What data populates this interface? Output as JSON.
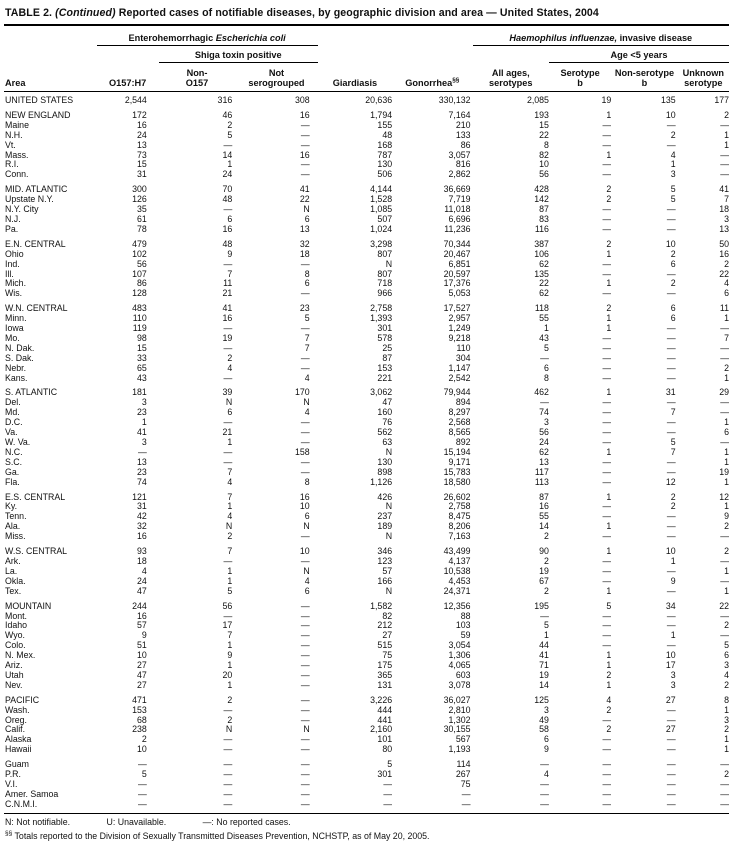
{
  "title": {
    "table_label": "TABLE 2.",
    "continued": "(Continued)",
    "text": "Reported cases of notifiable diseases, by geographic division and area — United States, 2004"
  },
  "header": {
    "area": "Area",
    "group_ecoli": {
      "prefix": "Enterohemorrhagic ",
      "italic": "Escherichia coli"
    },
    "group_shiga": "Shiga toxin positive",
    "group_hflu": {
      "italic": "Haemophilus influenzae,",
      "suffix": " invasive disease"
    },
    "group_age": "Age <5 years",
    "cols": {
      "o157": "O157:H7",
      "non_o157": "Non-\nO157",
      "not_serogrouped": "Not\nserogrouped",
      "giardiasis": "Giardiasis",
      "gonorrhea": "Gonorrhea",
      "gonorrhea_sup": "§§",
      "all_ages": "All ages,\nserotypes",
      "serotype_b": "Serotype\nb",
      "non_serotype_b": "Non-serotype\nb",
      "unknown_serotype": "Unknown\nserotype"
    }
  },
  "table": {
    "rows": [
      {
        "area": "UNITED STATES",
        "kind": "us",
        "gap": false,
        "values": [
          "2,544",
          "316",
          "308",
          "20,636",
          "330,132",
          "2,085",
          "19",
          "135",
          "177"
        ]
      },
      {
        "area": "NEW ENGLAND",
        "kind": "region",
        "gap": true,
        "values": [
          "172",
          "46",
          "16",
          "1,794",
          "7,164",
          "193",
          "1",
          "10",
          "2"
        ]
      },
      {
        "area": "Maine",
        "kind": "state",
        "gap": false,
        "values": [
          "16",
          "2",
          "—",
          "155",
          "210",
          "15",
          "—",
          "—",
          "—"
        ]
      },
      {
        "area": "N.H.",
        "kind": "state",
        "gap": false,
        "values": [
          "24",
          "5",
          "—",
          "48",
          "133",
          "22",
          "—",
          "2",
          "1"
        ]
      },
      {
        "area": "Vt.",
        "kind": "state",
        "gap": false,
        "values": [
          "13",
          "—",
          "—",
          "168",
          "86",
          "8",
          "—",
          "—",
          "1"
        ]
      },
      {
        "area": "Mass.",
        "kind": "state",
        "gap": false,
        "values": [
          "73",
          "14",
          "16",
          "787",
          "3,057",
          "82",
          "1",
          "4",
          "—"
        ]
      },
      {
        "area": "R.I.",
        "kind": "state",
        "gap": false,
        "values": [
          "15",
          "1",
          "—",
          "130",
          "816",
          "10",
          "—",
          "1",
          "—"
        ]
      },
      {
        "area": "Conn.",
        "kind": "state",
        "gap": false,
        "values": [
          "31",
          "24",
          "—",
          "506",
          "2,862",
          "56",
          "—",
          "3",
          "—"
        ]
      },
      {
        "area": "MID. ATLANTIC",
        "kind": "region",
        "gap": true,
        "values": [
          "300",
          "70",
          "41",
          "4,144",
          "36,669",
          "428",
          "2",
          "5",
          "41"
        ]
      },
      {
        "area": "Upstate N.Y.",
        "kind": "state",
        "gap": false,
        "values": [
          "126",
          "48",
          "22",
          "1,528",
          "7,719",
          "142",
          "2",
          "5",
          "7"
        ]
      },
      {
        "area": "N.Y. City",
        "kind": "state",
        "gap": false,
        "values": [
          "35",
          "—",
          "N",
          "1,085",
          "11,018",
          "87",
          "—",
          "—",
          "18"
        ]
      },
      {
        "area": "N.J.",
        "kind": "state",
        "gap": false,
        "values": [
          "61",
          "6",
          "6",
          "507",
          "6,696",
          "83",
          "—",
          "—",
          "3"
        ]
      },
      {
        "area": "Pa.",
        "kind": "state",
        "gap": false,
        "values": [
          "78",
          "16",
          "13",
          "1,024",
          "11,236",
          "116",
          "—",
          "—",
          "13"
        ]
      },
      {
        "area": "E.N. CENTRAL",
        "kind": "region",
        "gap": true,
        "values": [
          "479",
          "48",
          "32",
          "3,298",
          "70,344",
          "387",
          "2",
          "10",
          "50"
        ]
      },
      {
        "area": "Ohio",
        "kind": "state",
        "gap": false,
        "values": [
          "102",
          "9",
          "18",
          "807",
          "20,467",
          "106",
          "1",
          "2",
          "16"
        ]
      },
      {
        "area": "Ind.",
        "kind": "state",
        "gap": false,
        "values": [
          "56",
          "—",
          "—",
          "N",
          "6,851",
          "62",
          "—",
          "6",
          "2"
        ]
      },
      {
        "area": "Ill.",
        "kind": "state",
        "gap": false,
        "values": [
          "107",
          "7",
          "8",
          "807",
          "20,597",
          "135",
          "—",
          "—",
          "22"
        ]
      },
      {
        "area": "Mich.",
        "kind": "state",
        "gap": false,
        "values": [
          "86",
          "11",
          "6",
          "718",
          "17,376",
          "22",
          "1",
          "2",
          "4"
        ]
      },
      {
        "area": "Wis.",
        "kind": "state",
        "gap": false,
        "values": [
          "128",
          "21",
          "—",
          "966",
          "5,053",
          "62",
          "—",
          "—",
          "6"
        ]
      },
      {
        "area": "W.N. CENTRAL",
        "kind": "region",
        "gap": true,
        "values": [
          "483",
          "41",
          "23",
          "2,758",
          "17,527",
          "118",
          "2",
          "6",
          "11"
        ]
      },
      {
        "area": "Minn.",
        "kind": "state",
        "gap": false,
        "values": [
          "110",
          "16",
          "5",
          "1,393",
          "2,957",
          "55",
          "1",
          "6",
          "1"
        ]
      },
      {
        "area": "Iowa",
        "kind": "state",
        "gap": false,
        "values": [
          "119",
          "—",
          "—",
          "301",
          "1,249",
          "1",
          "1",
          "—",
          "—"
        ]
      },
      {
        "area": "Mo.",
        "kind": "state",
        "gap": false,
        "values": [
          "98",
          "19",
          "7",
          "578",
          "9,218",
          "43",
          "—",
          "—",
          "7"
        ]
      },
      {
        "area": "N. Dak.",
        "kind": "state",
        "gap": false,
        "values": [
          "15",
          "—",
          "7",
          "25",
          "110",
          "5",
          "—",
          "—",
          "—"
        ]
      },
      {
        "area": "S. Dak.",
        "kind": "state",
        "gap": false,
        "values": [
          "33",
          "2",
          "—",
          "87",
          "304",
          "—",
          "—",
          "—",
          "—"
        ]
      },
      {
        "area": "Nebr.",
        "kind": "state",
        "gap": false,
        "values": [
          "65",
          "4",
          "—",
          "153",
          "1,147",
          "6",
          "—",
          "—",
          "2"
        ]
      },
      {
        "area": "Kans.",
        "kind": "state",
        "gap": false,
        "values": [
          "43",
          "—",
          "4",
          "221",
          "2,542",
          "8",
          "—",
          "—",
          "1"
        ]
      },
      {
        "area": "S. ATLANTIC",
        "kind": "region",
        "gap": true,
        "values": [
          "181",
          "39",
          "170",
          "3,062",
          "79,944",
          "462",
          "1",
          "31",
          "29"
        ]
      },
      {
        "area": "Del.",
        "kind": "state",
        "gap": false,
        "values": [
          "3",
          "N",
          "N",
          "47",
          "894",
          "—",
          "—",
          "—",
          "—"
        ]
      },
      {
        "area": "Md.",
        "kind": "state",
        "gap": false,
        "values": [
          "23",
          "6",
          "4",
          "160",
          "8,297",
          "74",
          "—",
          "7",
          "—"
        ]
      },
      {
        "area": "D.C.",
        "kind": "state",
        "gap": false,
        "values": [
          "1",
          "—",
          "—",
          "76",
          "2,568",
          "3",
          "—",
          "—",
          "1"
        ]
      },
      {
        "area": "Va.",
        "kind": "state",
        "gap": false,
        "values": [
          "41",
          "21",
          "—",
          "562",
          "8,565",
          "56",
          "—",
          "—",
          "6"
        ]
      },
      {
        "area": "W. Va.",
        "kind": "state",
        "gap": false,
        "values": [
          "3",
          "1",
          "—",
          "63",
          "892",
          "24",
          "—",
          "5",
          "—"
        ]
      },
      {
        "area": "N.C.",
        "kind": "state",
        "gap": false,
        "values": [
          "—",
          "—",
          "158",
          "N",
          "15,194",
          "62",
          "1",
          "7",
          "1"
        ]
      },
      {
        "area": "S.C.",
        "kind": "state",
        "gap": false,
        "values": [
          "13",
          "—",
          "—",
          "130",
          "9,171",
          "13",
          "—",
          "—",
          "1"
        ]
      },
      {
        "area": "Ga.",
        "kind": "state",
        "gap": false,
        "values": [
          "23",
          "7",
          "—",
          "898",
          "15,783",
          "117",
          "—",
          "—",
          "19"
        ]
      },
      {
        "area": "Fla.",
        "kind": "state",
        "gap": false,
        "values": [
          "74",
          "4",
          "8",
          "1,126",
          "18,580",
          "113",
          "—",
          "12",
          "1"
        ]
      },
      {
        "area": "E.S. CENTRAL",
        "kind": "region",
        "gap": true,
        "values": [
          "121",
          "7",
          "16",
          "426",
          "26,602",
          "87",
          "1",
          "2",
          "12"
        ]
      },
      {
        "area": "Ky.",
        "kind": "state",
        "gap": false,
        "values": [
          "31",
          "1",
          "10",
          "N",
          "2,758",
          "16",
          "—",
          "2",
          "1"
        ]
      },
      {
        "area": "Tenn.",
        "kind": "state",
        "gap": false,
        "values": [
          "42",
          "4",
          "6",
          "237",
          "8,475",
          "55",
          "—",
          "—",
          "9"
        ]
      },
      {
        "area": "Ala.",
        "kind": "state",
        "gap": false,
        "values": [
          "32",
          "N",
          "N",
          "189",
          "8,206",
          "14",
          "1",
          "—",
          "2"
        ]
      },
      {
        "area": "Miss.",
        "kind": "state",
        "gap": false,
        "values": [
          "16",
          "2",
          "—",
          "N",
          "7,163",
          "2",
          "—",
          "—",
          "—"
        ]
      },
      {
        "area": "W.S. CENTRAL",
        "kind": "region",
        "gap": true,
        "values": [
          "93",
          "7",
          "10",
          "346",
          "43,499",
          "90",
          "1",
          "10",
          "2"
        ]
      },
      {
        "area": "Ark.",
        "kind": "state",
        "gap": false,
        "values": [
          "18",
          "—",
          "—",
          "123",
          "4,137",
          "2",
          "—",
          "1",
          "—"
        ]
      },
      {
        "area": "La.",
        "kind": "state",
        "gap": false,
        "values": [
          "4",
          "1",
          "N",
          "57",
          "10,538",
          "19",
          "—",
          "—",
          "1"
        ]
      },
      {
        "area": "Okla.",
        "kind": "state",
        "gap": false,
        "values": [
          "24",
          "1",
          "4",
          "166",
          "4,453",
          "67",
          "—",
          "9",
          "—"
        ]
      },
      {
        "area": "Tex.",
        "kind": "state",
        "gap": false,
        "values": [
          "47",
          "5",
          "6",
          "N",
          "24,371",
          "2",
          "1",
          "—",
          "1"
        ]
      },
      {
        "area": "MOUNTAIN",
        "kind": "region",
        "gap": true,
        "values": [
          "244",
          "56",
          "—",
          "1,582",
          "12,356",
          "195",
          "5",
          "34",
          "22"
        ]
      },
      {
        "area": "Mont.",
        "kind": "state",
        "gap": false,
        "values": [
          "16",
          "—",
          "—",
          "82",
          "88",
          "—",
          "—",
          "—",
          "—"
        ]
      },
      {
        "area": "Idaho",
        "kind": "state",
        "gap": false,
        "values": [
          "57",
          "17",
          "—",
          "212",
          "103",
          "5",
          "—",
          "—",
          "2"
        ]
      },
      {
        "area": "Wyo.",
        "kind": "state",
        "gap": false,
        "values": [
          "9",
          "7",
          "—",
          "27",
          "59",
          "1",
          "—",
          "1",
          "—"
        ]
      },
      {
        "area": "Colo.",
        "kind": "state",
        "gap": false,
        "values": [
          "51",
          "1",
          "—",
          "515",
          "3,054",
          "44",
          "—",
          "—",
          "5"
        ]
      },
      {
        "area": "N. Mex.",
        "kind": "state",
        "gap": false,
        "values": [
          "10",
          "9",
          "—",
          "75",
          "1,306",
          "41",
          "1",
          "10",
          "6"
        ]
      },
      {
        "area": "Ariz.",
        "kind": "state",
        "gap": false,
        "values": [
          "27",
          "1",
          "—",
          "175",
          "4,065",
          "71",
          "1",
          "17",
          "3"
        ]
      },
      {
        "area": "Utah",
        "kind": "state",
        "gap": false,
        "values": [
          "47",
          "20",
          "—",
          "365",
          "603",
          "19",
          "2",
          "3",
          "4"
        ]
      },
      {
        "area": "Nev.",
        "kind": "state",
        "gap": false,
        "values": [
          "27",
          "1",
          "—",
          "131",
          "3,078",
          "14",
          "1",
          "3",
          "2"
        ]
      },
      {
        "area": "PACIFIC",
        "kind": "region",
        "gap": true,
        "values": [
          "471",
          "2",
          "—",
          "3,226",
          "36,027",
          "125",
          "4",
          "27",
          "8"
        ]
      },
      {
        "area": "Wash.",
        "kind": "state",
        "gap": false,
        "values": [
          "153",
          "—",
          "—",
          "444",
          "2,810",
          "3",
          "2",
          "—",
          "1"
        ]
      },
      {
        "area": "Oreg.",
        "kind": "state",
        "gap": false,
        "values": [
          "68",
          "2",
          "—",
          "441",
          "1,302",
          "49",
          "—",
          "—",
          "3"
        ]
      },
      {
        "area": "Calif.",
        "kind": "state",
        "gap": false,
        "values": [
          "238",
          "N",
          "N",
          "2,160",
          "30,155",
          "58",
          "2",
          "27",
          "2"
        ]
      },
      {
        "area": "Alaska",
        "kind": "state",
        "gap": false,
        "values": [
          "2",
          "—",
          "—",
          "101",
          "567",
          "6",
          "—",
          "—",
          "1"
        ]
      },
      {
        "area": "Hawaii",
        "kind": "state",
        "gap": false,
        "values": [
          "10",
          "—",
          "—",
          "80",
          "1,193",
          "9",
          "—",
          "—",
          "1"
        ]
      },
      {
        "area": "Guam",
        "kind": "territory",
        "gap": true,
        "values": [
          "—",
          "—",
          "—",
          "5",
          "114",
          "—",
          "—",
          "—",
          "—"
        ]
      },
      {
        "area": "P.R.",
        "kind": "territory",
        "gap": false,
        "values": [
          "5",
          "—",
          "—",
          "301",
          "267",
          "4",
          "—",
          "—",
          "2"
        ]
      },
      {
        "area": "V.I.",
        "kind": "territory",
        "gap": false,
        "values": [
          "—",
          "—",
          "—",
          "—",
          "75",
          "—",
          "—",
          "—",
          "—"
        ]
      },
      {
        "area": "Amer. Samoa",
        "kind": "territory",
        "gap": false,
        "values": [
          "—",
          "—",
          "—",
          "—",
          "—",
          "—",
          "—",
          "—",
          "—"
        ]
      },
      {
        "area": "C.N.M.I.",
        "kind": "territory",
        "gap": false,
        "values": [
          "—",
          "—",
          "—",
          "—",
          "—",
          "—",
          "—",
          "—",
          "—"
        ]
      }
    ]
  },
  "footnotes": {
    "legend": [
      "N: Not notifiable.",
      "U: Unavailable.",
      "—: No reported cases."
    ],
    "note_sup": "§§",
    "note": "Totals reported to the Division of Sexually Transmitted Diseases Prevention, NCHSTP, as of May 20, 2005."
  }
}
